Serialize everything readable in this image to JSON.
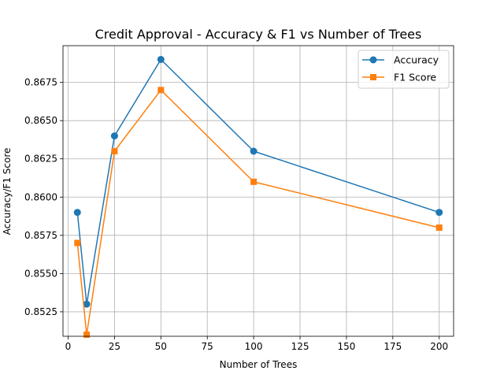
{
  "chart_data": {
    "type": "line",
    "title": "Credit Approval - Accuracy & F1 vs Number of Trees",
    "xlabel": "Number of Trees",
    "ylabel": "Accuracy/F1 Score",
    "x": [
      5,
      10,
      25,
      50,
      100,
      200
    ],
    "xlim": [
      -2.75,
      207.75
    ],
    "ylim": [
      0.8509,
      0.8699
    ],
    "xticks": [
      0,
      25,
      50,
      75,
      100,
      125,
      150,
      175,
      200
    ],
    "xtick_labels": [
      "0",
      "25",
      "50",
      "75",
      "100",
      "125",
      "150",
      "175",
      "200"
    ],
    "yticks": [
      0.8525,
      0.855,
      0.8575,
      0.86,
      0.8625,
      0.865,
      0.8675
    ],
    "ytick_labels": [
      "0.8525",
      "0.8550",
      "0.8575",
      "0.8600",
      "0.8625",
      "0.8650",
      "0.8675"
    ],
    "grid": true,
    "legend_position": "top-right",
    "series": [
      {
        "name": "Accuracy",
        "color": "#1f77b4",
        "marker": "circle",
        "values": [
          0.859,
          0.853,
          0.864,
          0.869,
          0.863,
          0.859
        ]
      },
      {
        "name": "F1 Score",
        "color": "#ff7f0e",
        "marker": "square",
        "values": [
          0.857,
          0.851,
          0.863,
          0.867,
          0.861,
          0.858
        ]
      }
    ]
  }
}
